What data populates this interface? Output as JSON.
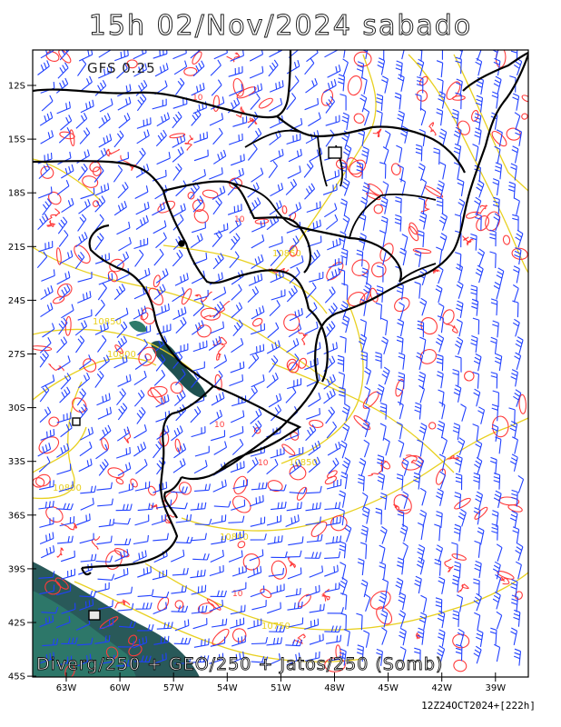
{
  "header": {
    "title": "15h 02/Nov/2024 sabado",
    "model": "GFS 0.25"
  },
  "map": {
    "lat_ticks": [
      "12S",
      "15S",
      "18S",
      "21S",
      "24S",
      "27S",
      "30S",
      "33S",
      "36S",
      "39S",
      "42S",
      "45S"
    ],
    "lon_ticks": [
      "63W",
      "60W",
      "57W",
      "54W",
      "51W",
      "48W",
      "45W",
      "42W",
      "39W"
    ],
    "product_label": "Diverg/250 + GEO/250 + Jatos/250 (Somb)",
    "run_label": "12Z24OCT2024+[222h]",
    "geopotential_labels": [
      "10800",
      "10850",
      "10750",
      "10850",
      "10800",
      "10850",
      "10800"
    ],
    "divergence_label": "10",
    "colors": {
      "divergence": "#ff3b3b",
      "geopotential": "#e8d020",
      "wind_barbs": "#2040ff",
      "jet_shading": "#1e5050",
      "borders": "#000000"
    }
  }
}
